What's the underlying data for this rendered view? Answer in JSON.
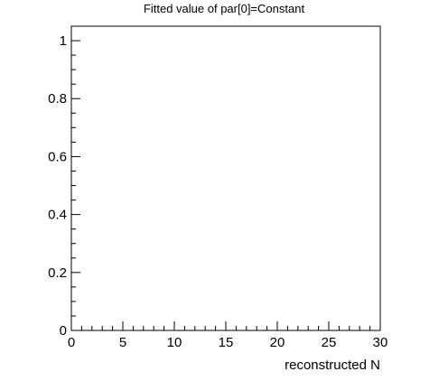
{
  "chart_data": {
    "type": "scatter",
    "title": "Fitted value of par[0]=Constant",
    "xlabel": "reconstructed  N",
    "ylabel": "",
    "xlim": [
      0,
      30
    ],
    "ylim": [
      0,
      1.05
    ],
    "x_ticks": [
      0,
      5,
      10,
      15,
      20,
      25,
      30
    ],
    "x_tick_labels": [
      "0",
      "5",
      "10",
      "15",
      "20",
      "25",
      "30"
    ],
    "y_ticks": [
      0,
      0.2,
      0.4,
      0.6,
      0.8,
      1
    ],
    "y_tick_labels": [
      "0",
      "0.2",
      "0.4",
      "0.6",
      "0.8",
      "1"
    ],
    "grid": false,
    "series": []
  }
}
